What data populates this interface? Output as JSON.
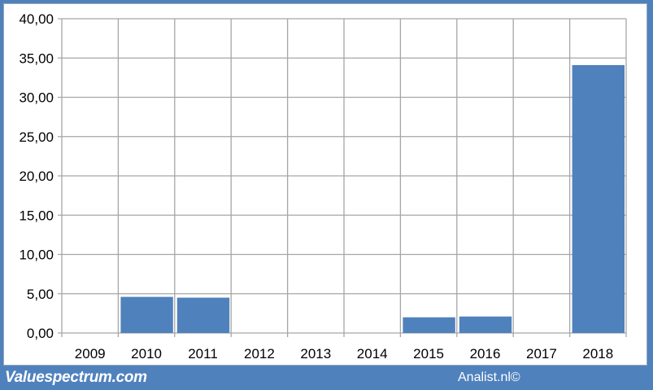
{
  "chart_data": {
    "type": "bar",
    "title": "",
    "xlabel": "",
    "ylabel": "",
    "categories": [
      "2009",
      "2010",
      "2011",
      "2012",
      "2013",
      "2014",
      "2015",
      "2016",
      "2017",
      "2018"
    ],
    "values": [
      0,
      4.6,
      4.5,
      0,
      0,
      0,
      2.0,
      2.1,
      0,
      34.1
    ],
    "ylim": [
      0,
      40
    ],
    "yticks": [
      0,
      5,
      10,
      15,
      20,
      25,
      30,
      35,
      40
    ],
    "ytick_labels": [
      "0,00",
      "5,00",
      "10,00",
      "15,00",
      "20,00",
      "25,00",
      "30,00",
      "35,00",
      "40,00"
    ],
    "grid": true,
    "bar_color": "#4f81bd"
  },
  "footer": {
    "brand": "Valuespectrum.com",
    "credit": "Analist.nl©"
  },
  "colors": {
    "frame": "#4f81bd",
    "grid": "#a6a6a6"
  }
}
